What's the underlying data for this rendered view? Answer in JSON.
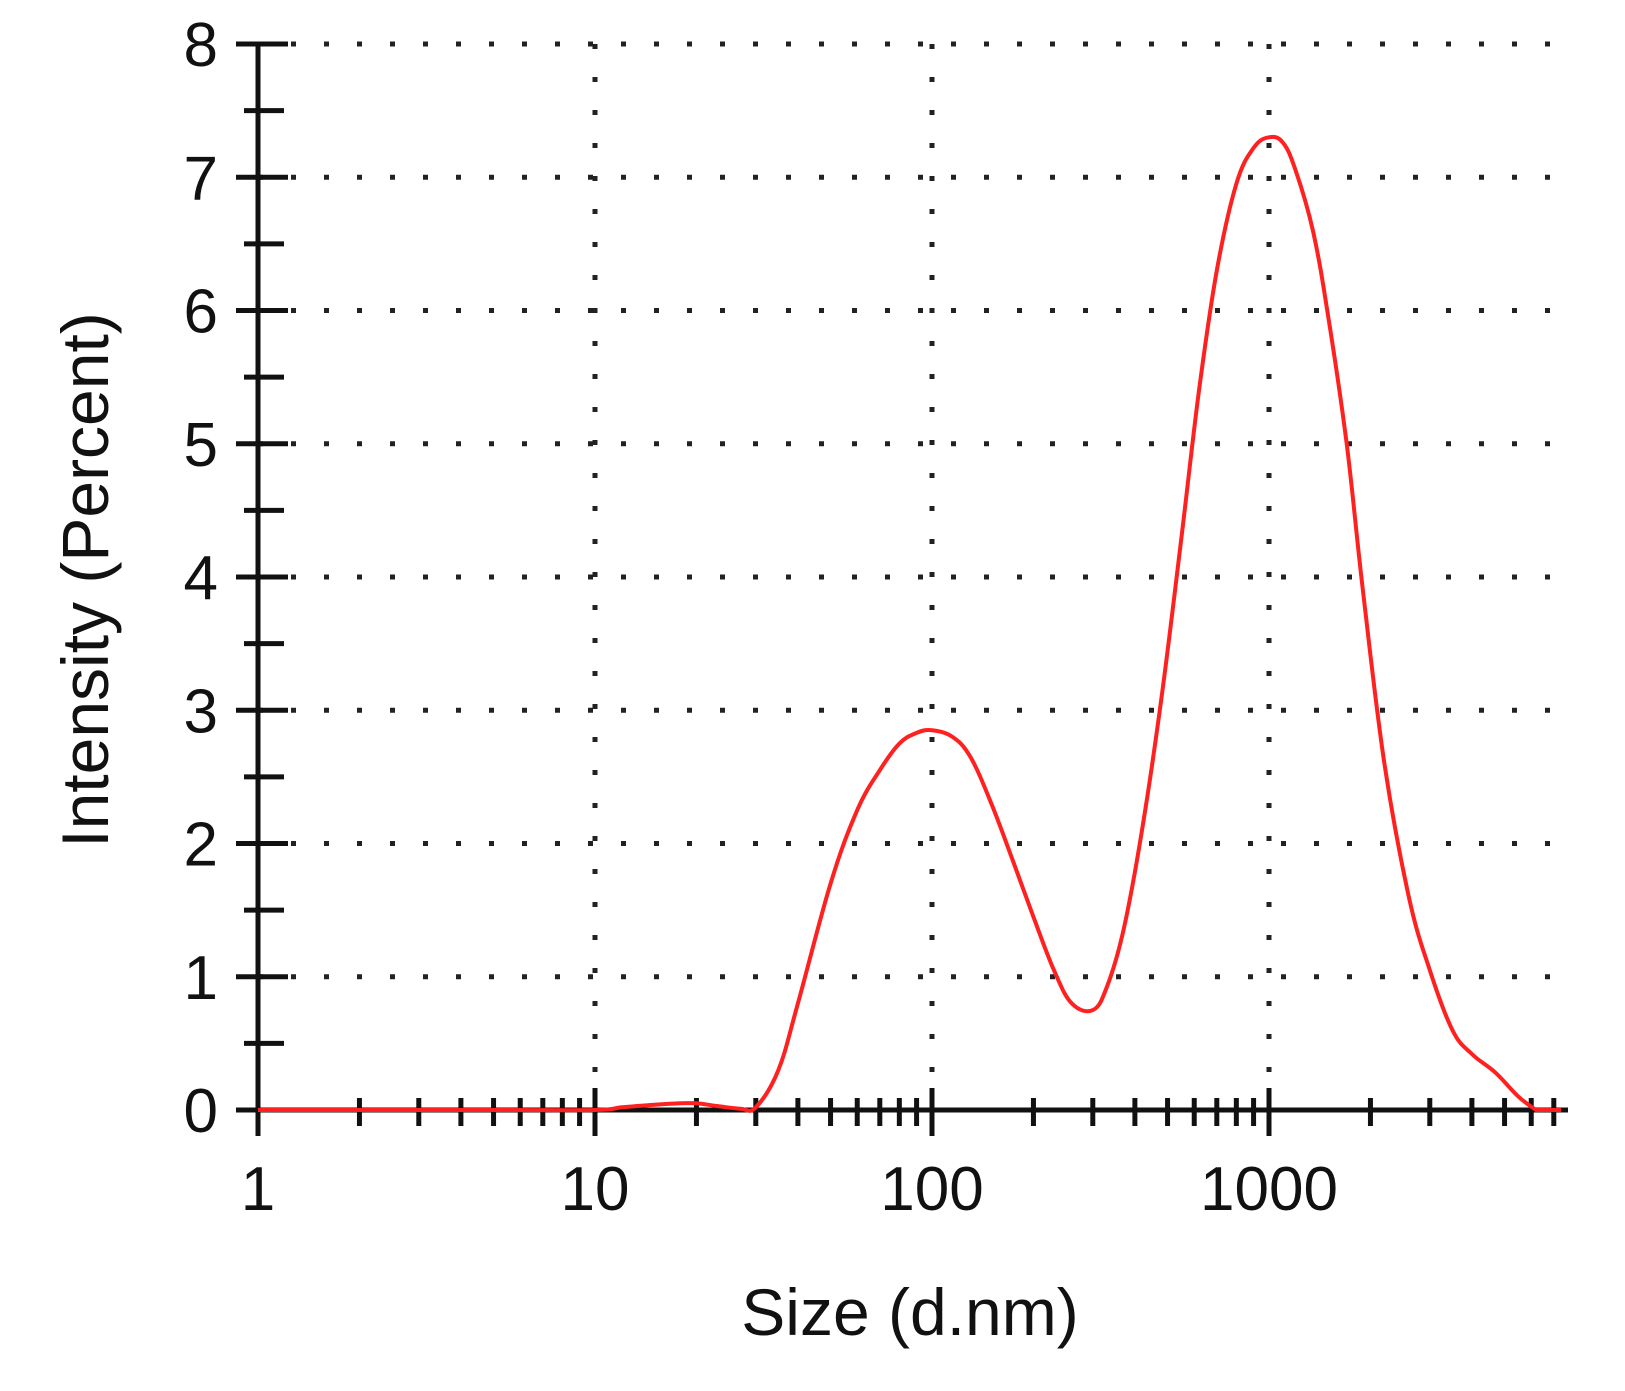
{
  "chart_data": {
    "type": "line",
    "xlabel": "Size (d.nm)",
    "ylabel": "Intensity (Percent)",
    "x_scale": "log",
    "xlim": [
      1,
      7000
    ],
    "ylim": [
      0,
      8
    ],
    "x_ticks": [
      1,
      10,
      100,
      1000
    ],
    "x_tick_labels": [
      "1",
      "10",
      "100",
      "1000"
    ],
    "y_ticks": [
      0,
      1,
      2,
      3,
      4,
      5,
      6,
      7,
      8
    ],
    "y_tick_labels": [
      "0",
      "1",
      "2",
      "3",
      "4",
      "5",
      "6",
      "7",
      "8"
    ],
    "grid": "dotted",
    "line_color": "#ff2020",
    "axis_color": "#111111",
    "series": [
      {
        "x": [
          1,
          5,
          10,
          12,
          15,
          18,
          20,
          23,
          27,
          30,
          35,
          40,
          50,
          60,
          70,
          80,
          90,
          100,
          115,
          130,
          150,
          175,
          200,
          230,
          260,
          300,
          330,
          370,
          420,
          480,
          550,
          620,
          700,
          800,
          900,
          1000,
          1100,
          1200,
          1350,
          1500,
          1700,
          1900,
          2200,
          2600,
          3000,
          3500,
          4000,
          4700,
          5500,
          6200
        ],
        "y": [
          0,
          0,
          0,
          0.02,
          0.04,
          0.05,
          0.05,
          0.03,
          0.01,
          0.02,
          0.3,
          0.8,
          1.7,
          2.25,
          2.55,
          2.75,
          2.83,
          2.85,
          2.8,
          2.65,
          2.3,
          1.85,
          1.45,
          1.05,
          0.8,
          0.75,
          0.92,
          1.35,
          2.1,
          3.1,
          4.3,
          5.4,
          6.3,
          6.95,
          7.22,
          7.3,
          7.26,
          7.05,
          6.6,
          5.95,
          5.0,
          3.9,
          2.6,
          1.6,
          1.05,
          0.6,
          0.42,
          0.28,
          0.1,
          0
        ]
      }
    ]
  }
}
